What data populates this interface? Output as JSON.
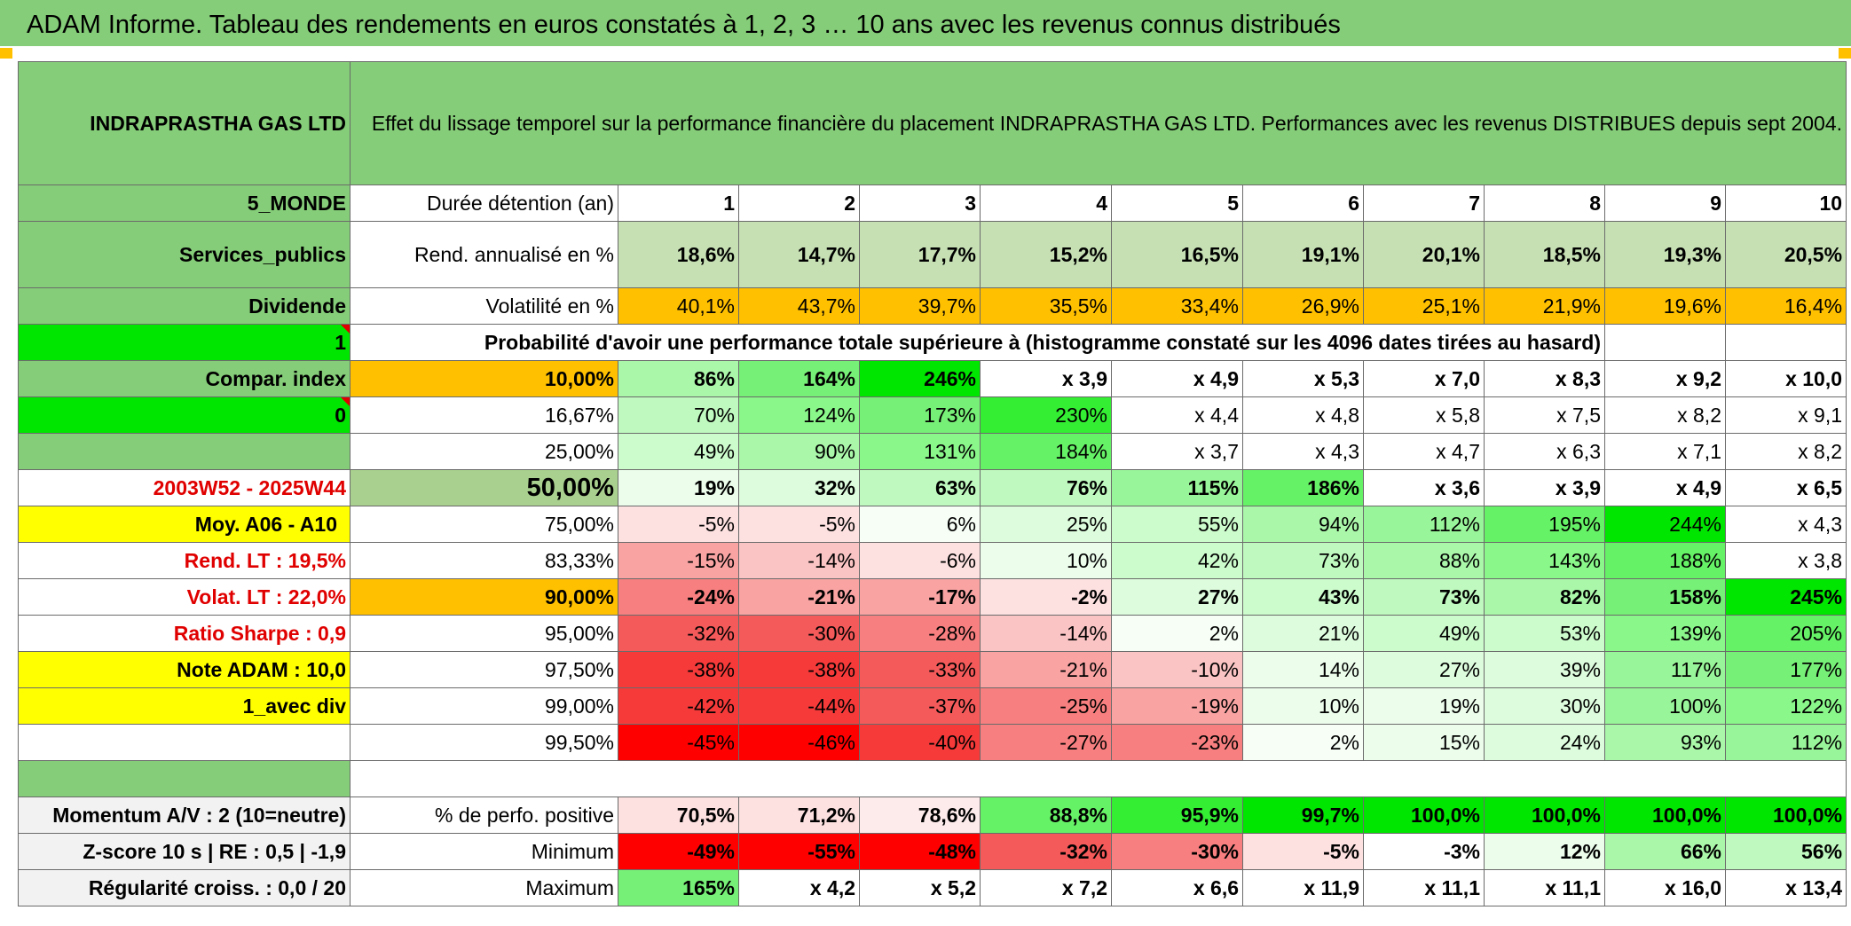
{
  "title": "ADAM Informe. Tableau des rendements en euros constatés à 1, 2, 3 … 10 ans avec les revenus connus distribués",
  "header": {
    "name": "INDRAPRASTHA GAS LTD",
    "description": "Effet du lissage temporel sur la performance financière du placement INDRAPRASTHA GAS LTD. Performances avec les revenus DISTRIBUES depuis sept 2004."
  },
  "left": {
    "zone": "5_MONDE",
    "sector": "Services_publics",
    "type": "Dividende",
    "one": "1",
    "compar": "Compar. index",
    "zero": "0",
    "period": "2003W52 - 2025W44",
    "moy": "Moy. A06 - A10",
    "rend_lt": "Rend. LT :   19,5%",
    "volat_lt": "Volat. LT :   22,0%",
    "sharpe": "Ratio Sharpe :    0,9",
    "note": "Note ADAM : 10,0",
    "avec_div": "1_avec div"
  },
  "duration_label": "Durée détention (an)",
  "years": [
    "1",
    "2",
    "3",
    "4",
    "5",
    "6",
    "7",
    "8",
    "9",
    "10"
  ],
  "rend": {
    "label": "Rend. annualisé en %",
    "values": [
      "18,6%",
      "14,7%",
      "17,7%",
      "15,2%",
      "16,5%",
      "19,1%",
      "20,1%",
      "18,5%",
      "19,3%",
      "20,5%"
    ]
  },
  "vol": {
    "label": "Volatilité en %",
    "values": [
      "40,1%",
      "43,7%",
      "39,7%",
      "35,5%",
      "33,4%",
      "26,9%",
      "25,1%",
      "21,9%",
      "19,6%",
      "16,4%"
    ]
  },
  "prob_label": "Probabilité d'avoir une performance totale supérieure à (histogramme constaté sur les 4096 dates tirées au hasard)",
  "prob_rows": [
    {
      "pct": "10,00%",
      "values": [
        "86%",
        "164%",
        "246%",
        "x 3,9",
        "x 4,9",
        "x 5,3",
        "x 7,0",
        "x 8,3",
        "x 9,2",
        "x 10,0"
      ]
    },
    {
      "pct": "16,67%",
      "values": [
        "70%",
        "124%",
        "173%",
        "230%",
        "x 4,4",
        "x 4,8",
        "x 5,8",
        "x 7,5",
        "x 8,2",
        "x 9,1"
      ]
    },
    {
      "pct": "25,00%",
      "values": [
        "49%",
        "90%",
        "131%",
        "184%",
        "x 3,7",
        "x 4,3",
        "x 4,7",
        "x 6,3",
        "x 7,1",
        "x 8,2"
      ]
    },
    {
      "pct": "50,00%",
      "values": [
        "19%",
        "32%",
        "63%",
        "76%",
        "115%",
        "186%",
        "x 3,6",
        "x 3,9",
        "x 4,9",
        "x 6,5"
      ]
    },
    {
      "pct": "75,00%",
      "values": [
        "-5%",
        "-5%",
        "6%",
        "25%",
        "55%",
        "94%",
        "112%",
        "195%",
        "244%",
        "x 4,3"
      ]
    },
    {
      "pct": "83,33%",
      "values": [
        "-15%",
        "-14%",
        "-6%",
        "10%",
        "42%",
        "73%",
        "88%",
        "143%",
        "188%",
        "x 3,8"
      ]
    },
    {
      "pct": "90,00%",
      "values": [
        "-24%",
        "-21%",
        "-17%",
        "-2%",
        "27%",
        "43%",
        "73%",
        "82%",
        "158%",
        "245%"
      ]
    },
    {
      "pct": "95,00%",
      "values": [
        "-32%",
        "-30%",
        "-28%",
        "-14%",
        "2%",
        "21%",
        "49%",
        "53%",
        "139%",
        "205%"
      ]
    },
    {
      "pct": "97,50%",
      "values": [
        "-38%",
        "-38%",
        "-33%",
        "-21%",
        "-10%",
        "14%",
        "27%",
        "39%",
        "117%",
        "177%"
      ]
    },
    {
      "pct": "99,00%",
      "values": [
        "-42%",
        "-44%",
        "-37%",
        "-25%",
        "-19%",
        "10%",
        "19%",
        "30%",
        "100%",
        "122%"
      ]
    },
    {
      "pct": "99,50%",
      "values": [
        "-45%",
        "-46%",
        "-40%",
        "-27%",
        "-23%",
        "2%",
        "15%",
        "24%",
        "93%",
        "112%"
      ]
    }
  ],
  "bottom": [
    {
      "left": "Momentum A/V : 2 (10=neutre)",
      "label": "% de perfo. positive",
      "values": [
        "70,5%",
        "71,2%",
        "78,6%",
        "88,8%",
        "95,9%",
        "99,7%",
        "100,0%",
        "100,0%",
        "100,0%",
        "100,0%"
      ]
    },
    {
      "left": "Z-score 10 s | RE : 0,5 | -1,9",
      "label": "Minimum",
      "values": [
        "-49%",
        "-55%",
        "-48%",
        "-32%",
        "-30%",
        "-5%",
        "-3%",
        "12%",
        "66%",
        "56%"
      ]
    },
    {
      "left": "Régularité croiss. : 0,0 / 20",
      "label": "Maximum",
      "values": [
        "165%",
        "x 4,2",
        "x 5,2",
        "x 7,2",
        "x 6,6",
        "x 11,9",
        "x 11,1",
        "x 11,1",
        "x 16,0",
        "x 13,4"
      ]
    }
  ],
  "colors": {
    "header_green": "#85cd78",
    "light_green": "#c6e0b4",
    "orange": "#ffc000",
    "bright_green": "#00e600",
    "yellow": "#ffff00"
  }
}
